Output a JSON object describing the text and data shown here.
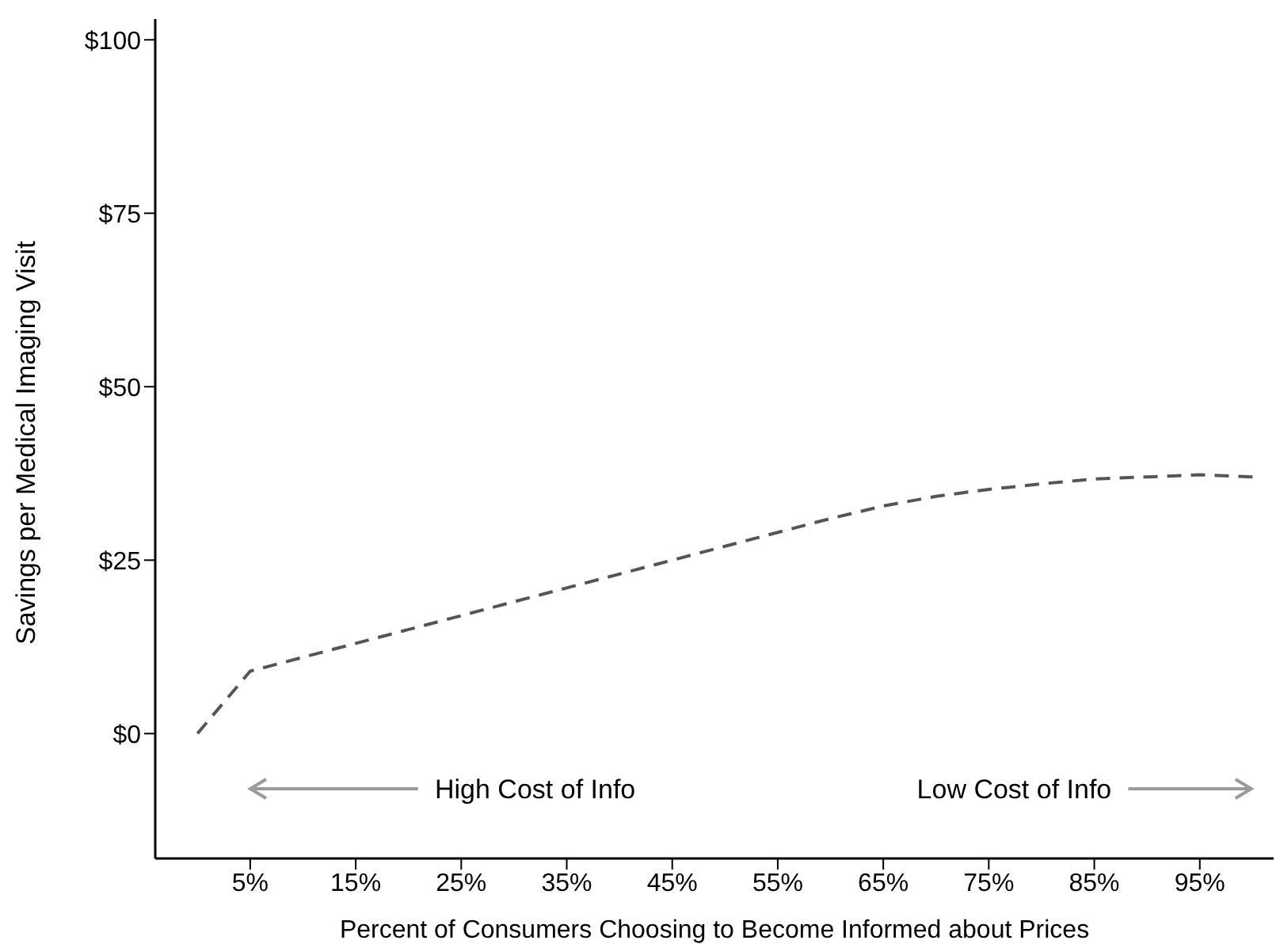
{
  "chart_data": {
    "type": "line",
    "xlabel": "Percent of Consumers Choosing to Become Informed about Prices",
    "ylabel": "Savings per Medical Imaging Visit",
    "x": [
      0,
      5,
      10,
      15,
      20,
      25,
      30,
      35,
      40,
      45,
      50,
      55,
      60,
      65,
      70,
      75,
      80,
      85,
      90,
      95,
      100
    ],
    "series": [
      {
        "color": "#555555",
        "line_style": "dashed",
        "values": [
          0,
          9,
          11,
          13,
          15,
          17,
          19,
          21,
          23,
          25,
          27,
          29,
          31,
          32.8,
          34.2,
          35.2,
          36,
          36.7,
          37,
          37.3,
          37
        ]
      }
    ],
    "xlim": [
      -4,
      102
    ],
    "xticks": [
      {
        "value": 5,
        "label": "5%"
      },
      {
        "value": 15,
        "label": "15%"
      },
      {
        "value": 25,
        "label": "25%"
      },
      {
        "value": 35,
        "label": "35%"
      },
      {
        "value": 45,
        "label": "45%"
      },
      {
        "value": 55,
        "label": "55%"
      },
      {
        "value": 65,
        "label": "65%"
      },
      {
        "value": 75,
        "label": "75%"
      },
      {
        "value": 85,
        "label": "85%"
      },
      {
        "value": 95,
        "label": "95%"
      }
    ],
    "ylim": [
      -18,
      103
    ],
    "yticks": [
      {
        "value": 0,
        "label": "$0"
      },
      {
        "value": 25,
        "label": "$25"
      },
      {
        "value": 50,
        "label": "$50"
      },
      {
        "value": 75,
        "label": "$75"
      },
      {
        "value": 100,
        "label": "$100"
      }
    ],
    "grid": false,
    "legend": false,
    "marker": "none",
    "annotations": [
      "High Cost of Info",
      "Low Cost of Info"
    ]
  }
}
